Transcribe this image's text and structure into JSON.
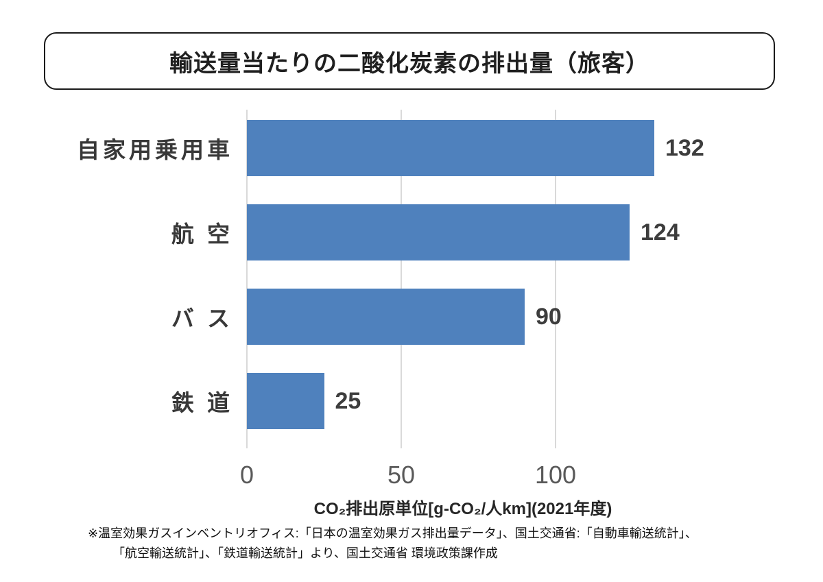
{
  "title": "輸送量当たりの二酸化炭素の排出量（旅客）",
  "chart_data": {
    "type": "bar",
    "orientation": "horizontal",
    "title": "輸送量当たりの二酸化炭素の排出量（旅客）",
    "categories": [
      "自家用乗用車",
      "航 空",
      "バ ス",
      "鉄 道"
    ],
    "values": [
      132,
      124,
      90,
      25
    ],
    "xlabel": "CO₂排出原単位[g-CO₂/人km](2021年度)",
    "xticks": [
      0,
      50,
      100
    ],
    "xlim": [
      0,
      140
    ],
    "grid": true,
    "legend": false,
    "bar_color": "#4F81BD",
    "gridline_color": "#D9D9D9"
  },
  "footnote": {
    "line1": "※温室効果ガスインベントリオフィス:「日本の温室効果ガス排出量データ」、国土交通省:「自動車輸送統計」、",
    "line2": "「航空輸送統計」、「鉄道輸送統計」より、国土交通省 環境政策課作成"
  }
}
